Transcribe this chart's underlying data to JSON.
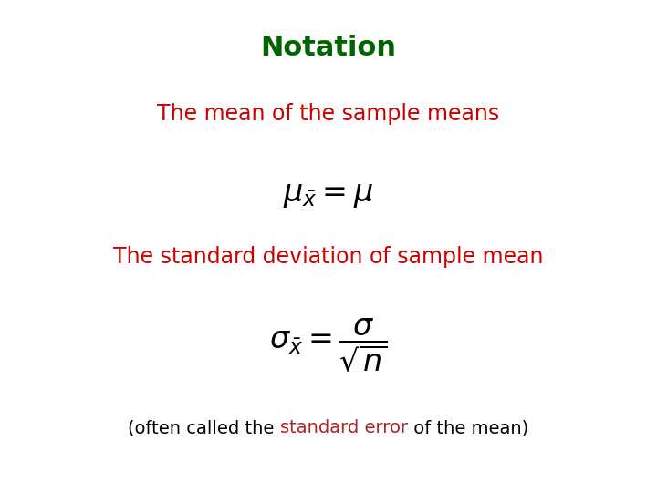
{
  "title": "Notation",
  "title_color": "#006400",
  "title_fontsize": 22,
  "title_bold": true,
  "line1_text": "The mean of the sample means",
  "line1_color": "#cc0000",
  "line1_fontsize": 17,
  "formula1": "$\\mu_{\\bar{x}} = \\mu$",
  "formula1_fontsize": 24,
  "line2_text": "The standard deviation of sample mean",
  "line2_color": "#cc0000",
  "line2_fontsize": 17,
  "formula2": "$\\sigma_{\\bar{x}} = \\dfrac{\\sigma}{\\sqrt{n}}$",
  "formula2_fontsize": 24,
  "note_prefix": "(often called the ",
  "note_highlight": "standard error",
  "note_suffix": " of the mean)",
  "note_color": "#000000",
  "note_highlight_color": "#b22222",
  "note_fontsize": 14,
  "background_color": "#ffffff",
  "fig_width": 7.2,
  "fig_height": 5.4,
  "dpi": 100
}
